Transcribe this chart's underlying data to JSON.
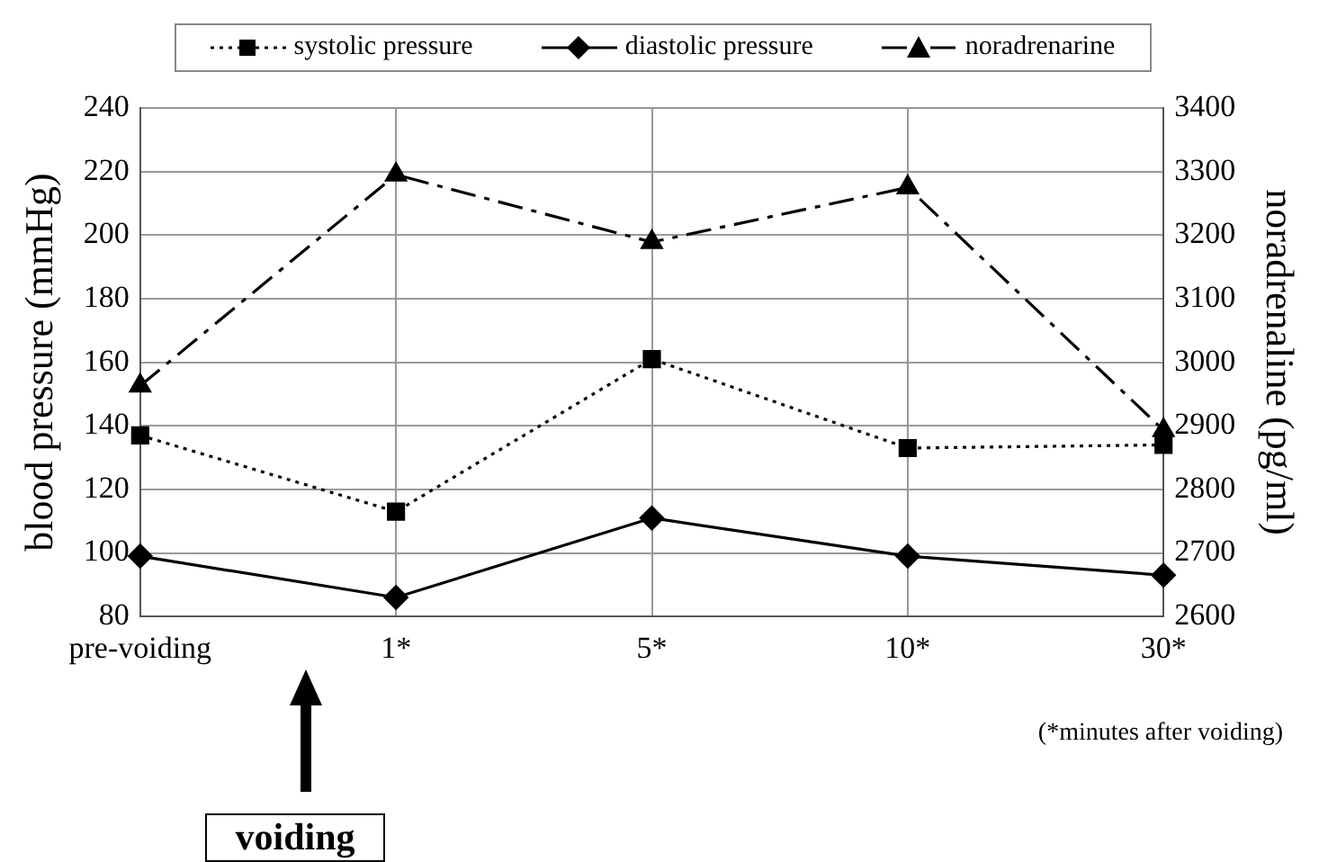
{
  "chart_data": {
    "type": "line",
    "categories": [
      "pre-voiding",
      "1*",
      "5*",
      "10*",
      "30*"
    ],
    "series": [
      {
        "name": "systolic pressure",
        "color": "#000000",
        "values": [
          137,
          113,
          161,
          133,
          134
        ],
        "line_style": "dotted",
        "marker": "square"
      },
      {
        "name": "diastolic pressure",
        "color": "#000000",
        "values": [
          99,
          86,
          111,
          99,
          93
        ],
        "line_style": "solid",
        "marker": "diamond"
      },
      {
        "name": "noradrenarine",
        "color": "#000000",
        "values": [
          2963,
          3295,
          3189,
          3275,
          2893
        ],
        "line_style": "dashed",
        "marker": "triangle",
        "axis": "y2"
      }
    ],
    "ylabel": "blood pressure (mmHg)",
    "y2label": "noradrenaline (pg/ml)",
    "ylim": [
      80,
      240
    ],
    "yticks": [
      80,
      100,
      120,
      140,
      160,
      180,
      200,
      220,
      240
    ],
    "y2lim": [
      2600,
      3400
    ],
    "y2ticks": [
      2600,
      2700,
      2800,
      2900,
      3000,
      3100,
      3200,
      3300,
      3400
    ],
    "grid": true,
    "legend": "top",
    "annotations": [
      "(*minutes after voiding)",
      "voiding"
    ]
  }
}
